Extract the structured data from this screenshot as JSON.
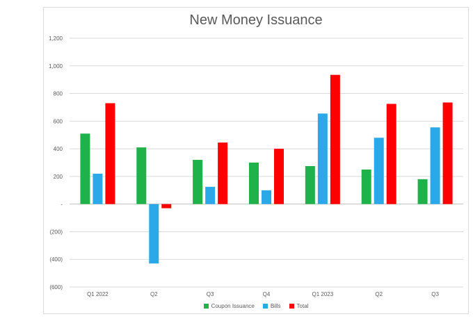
{
  "chart_data": {
    "type": "bar",
    "title": "New Money Issuance",
    "categories": [
      "Q1 2022",
      "Q2",
      "Q3",
      "Q4",
      "Q1 2023",
      "Q2",
      "Q3"
    ],
    "series": [
      {
        "name": "Coupon Issuance",
        "color": "#1fb24a",
        "values": [
          510,
          410,
          320,
          300,
          275,
          250,
          180
        ]
      },
      {
        "name": "Bills",
        "color": "#2aa8e8",
        "values": [
          220,
          -430,
          125,
          100,
          655,
          480,
          555
        ]
      },
      {
        "name": "Total",
        "color": "#ff0000",
        "values": [
          730,
          -30,
          445,
          400,
          935,
          725,
          735
        ]
      }
    ],
    "ylim": [
      -600,
      1200
    ],
    "yticks": [
      -600,
      -400,
      -200,
      0,
      200,
      400,
      600,
      800,
      1000,
      1200
    ],
    "ytick_labels": [
      "(600)",
      "(400)",
      "(200)",
      "-",
      "200",
      "400",
      "600",
      "800",
      "1,000",
      "1,200"
    ],
    "grid": true,
    "legend_position": "bottom"
  }
}
